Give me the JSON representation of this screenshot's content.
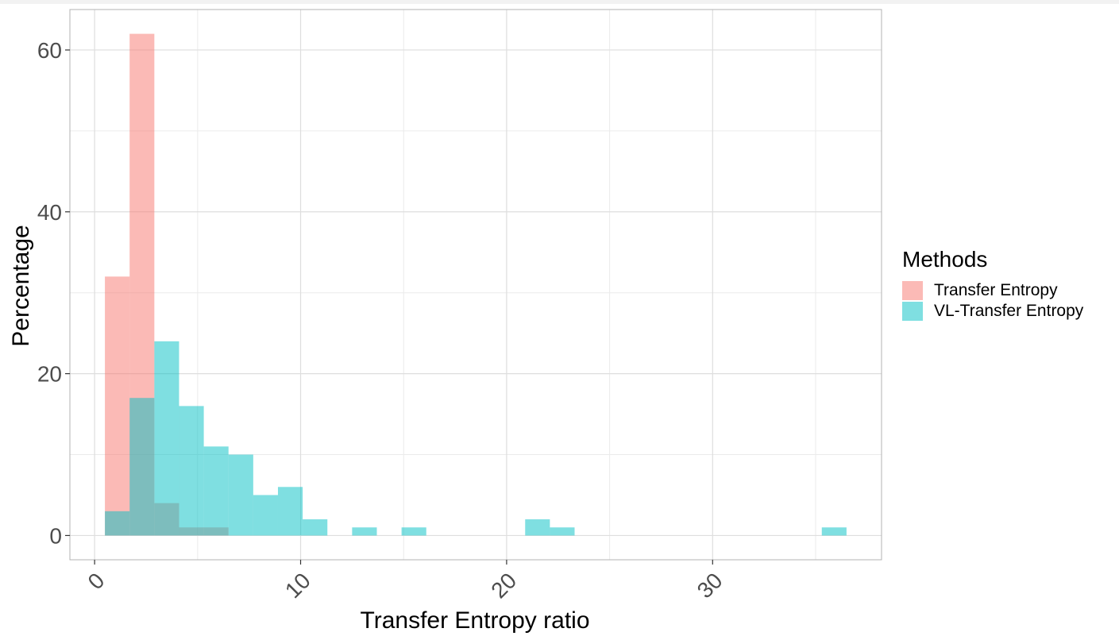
{
  "chart_data": {
    "type": "bar",
    "subtype": "overlapping histogram",
    "xlabel": "Transfer Entropy ratio",
    "ylabel": "Percentage",
    "xlim": [
      -1.2,
      38.2
    ],
    "ylim": [
      -3,
      65
    ],
    "x_ticks": [
      0,
      10,
      20,
      30
    ],
    "x_tick_labels": [
      "0",
      "10",
      "20",
      "30"
    ],
    "y_ticks": [
      0,
      20,
      40,
      60
    ],
    "y_tick_labels": [
      "0",
      "20",
      "40",
      "60"
    ],
    "grid": true,
    "legend_title": "Methods",
    "legend_position": "right",
    "series": [
      {
        "name": "Transfer Entropy",
        "color": "#F8766D",
        "bins": [
          {
            "x0": 0.5,
            "x1": 1.7,
            "value": 32
          },
          {
            "x0": 1.7,
            "x1": 2.9,
            "value": 62
          },
          {
            "x0": 2.9,
            "x1": 4.1,
            "value": 4
          },
          {
            "x0": 4.1,
            "x1": 5.3,
            "value": 1
          },
          {
            "x0": 5.3,
            "x1": 6.5,
            "value": 1
          }
        ]
      },
      {
        "name": "VL-Transfer Entropy",
        "color": "#00BFC4",
        "bins": [
          {
            "x0": 0.5,
            "x1": 1.7,
            "value": 3
          },
          {
            "x0": 1.7,
            "x1": 2.9,
            "value": 17
          },
          {
            "x0": 2.9,
            "x1": 4.1,
            "value": 24
          },
          {
            "x0": 4.1,
            "x1": 5.3,
            "value": 16
          },
          {
            "x0": 5.3,
            "x1": 6.5,
            "value": 11
          },
          {
            "x0": 6.5,
            "x1": 7.7,
            "value": 10
          },
          {
            "x0": 7.7,
            "x1": 8.9,
            "value": 5
          },
          {
            "x0": 8.9,
            "x1": 10.1,
            "value": 6
          },
          {
            "x0": 10.1,
            "x1": 11.3,
            "value": 2
          },
          {
            "x0": 12.5,
            "x1": 13.7,
            "value": 1
          },
          {
            "x0": 14.9,
            "x1": 16.1,
            "value": 1
          },
          {
            "x0": 20.9,
            "x1": 22.1,
            "value": 2
          },
          {
            "x0": 22.1,
            "x1": 23.3,
            "value": 1
          },
          {
            "x0": 35.3,
            "x1": 36.5,
            "value": 1
          }
        ]
      }
    ]
  }
}
